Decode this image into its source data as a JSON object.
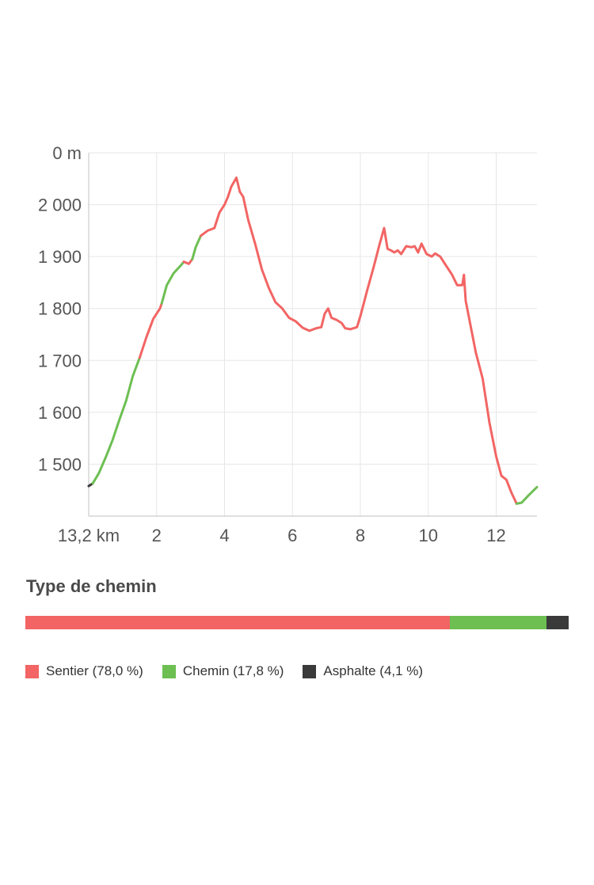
{
  "chart_data": {
    "type": "line",
    "xlabel": "",
    "ylabel": "",
    "x_unit_label": "13,2 km",
    "y_unit_label": "0 m",
    "xlim": [
      0,
      13.2
    ],
    "ylim": [
      1400,
      2100
    ],
    "x_ticks": [
      2,
      4,
      6,
      8,
      10,
      12
    ],
    "y_ticks": [
      {
        "value": 2000,
        "label": "2 000"
      },
      {
        "value": 1900,
        "label": "1 900"
      },
      {
        "value": 1800,
        "label": "1 800"
      },
      {
        "value": 1700,
        "label": "1 700"
      },
      {
        "value": 1600,
        "label": "1 600"
      },
      {
        "value": 1500,
        "label": "1 500"
      }
    ],
    "grid": true,
    "colors": {
      "sentier": "#f26564",
      "chemin": "#6dbf52",
      "asphalte": "#3a3a3a",
      "grid": "#e6e6e6",
      "axis": "#cccccc"
    },
    "series": [
      {
        "surface": "asphalte",
        "points": [
          [
            0.0,
            1458
          ],
          [
            0.12,
            1463
          ]
        ]
      },
      {
        "surface": "chemin",
        "points": [
          [
            0.12,
            1463
          ],
          [
            0.3,
            1483
          ],
          [
            0.5,
            1513
          ],
          [
            0.7,
            1546
          ],
          [
            0.9,
            1585
          ],
          [
            1.1,
            1622
          ],
          [
            1.3,
            1670
          ],
          [
            1.5,
            1705
          ]
        ]
      },
      {
        "surface": "sentier",
        "points": [
          [
            1.5,
            1705
          ],
          [
            1.7,
            1745
          ],
          [
            1.9,
            1780
          ],
          [
            2.1,
            1800
          ],
          [
            2.15,
            1810
          ]
        ]
      },
      {
        "surface": "chemin",
        "points": [
          [
            2.15,
            1810
          ],
          [
            2.3,
            1845
          ],
          [
            2.5,
            1868
          ],
          [
            2.7,
            1882
          ],
          [
            2.8,
            1890
          ]
        ]
      },
      {
        "surface": "sentier",
        "points": [
          [
            2.8,
            1890
          ],
          [
            2.95,
            1886
          ],
          [
            3.05,
            1895
          ]
        ]
      },
      {
        "surface": "chemin",
        "points": [
          [
            3.05,
            1895
          ],
          [
            3.15,
            1918
          ],
          [
            3.3,
            1940
          ]
        ]
      },
      {
        "surface": "sentier",
        "points": [
          [
            3.3,
            1940
          ],
          [
            3.5,
            1950
          ],
          [
            3.7,
            1955
          ],
          [
            3.85,
            1985
          ],
          [
            4.0,
            2000
          ],
          [
            4.1,
            2015
          ],
          [
            4.2,
            2035
          ],
          [
            4.35,
            2052
          ],
          [
            4.45,
            2025
          ],
          [
            4.55,
            2015
          ],
          [
            4.7,
            1970
          ],
          [
            4.9,
            1925
          ],
          [
            5.1,
            1875
          ],
          [
            5.3,
            1840
          ],
          [
            5.5,
            1812
          ],
          [
            5.7,
            1800
          ],
          [
            5.9,
            1782
          ],
          [
            6.1,
            1775
          ],
          [
            6.3,
            1763
          ],
          [
            6.5,
            1757
          ],
          [
            6.7,
            1762
          ],
          [
            6.85,
            1764
          ],
          [
            6.95,
            1790
          ],
          [
            7.05,
            1800
          ],
          [
            7.15,
            1782
          ],
          [
            7.3,
            1778
          ],
          [
            7.45,
            1772
          ],
          [
            7.55,
            1762
          ],
          [
            7.7,
            1760
          ],
          [
            7.9,
            1764
          ],
          [
            8.0,
            1785
          ],
          [
            8.2,
            1835
          ],
          [
            8.4,
            1882
          ],
          [
            8.55,
            1920
          ],
          [
            8.7,
            1955
          ],
          [
            8.8,
            1915
          ],
          [
            8.9,
            1912
          ],
          [
            9.0,
            1908
          ],
          [
            9.1,
            1912
          ],
          [
            9.2,
            1905
          ],
          [
            9.35,
            1920
          ],
          [
            9.5,
            1918
          ],
          [
            9.6,
            1920
          ],
          [
            9.7,
            1908
          ],
          [
            9.8,
            1925
          ],
          [
            9.95,
            1905
          ],
          [
            10.1,
            1900
          ],
          [
            10.2,
            1906
          ],
          [
            10.35,
            1900
          ],
          [
            10.5,
            1885
          ],
          [
            10.7,
            1865
          ],
          [
            10.85,
            1845
          ],
          [
            11.0,
            1845
          ],
          [
            11.05,
            1865
          ],
          [
            11.1,
            1815
          ],
          [
            11.25,
            1765
          ],
          [
            11.4,
            1715
          ],
          [
            11.6,
            1665
          ],
          [
            11.8,
            1580
          ],
          [
            12.0,
            1515
          ],
          [
            12.15,
            1478
          ],
          [
            12.3,
            1470
          ],
          [
            12.45,
            1445
          ],
          [
            12.6,
            1424
          ]
        ]
      },
      {
        "surface": "chemin",
        "points": [
          [
            12.6,
            1424
          ],
          [
            12.75,
            1426
          ],
          [
            12.95,
            1440
          ],
          [
            13.2,
            1456
          ]
        ]
      }
    ]
  },
  "path_type": {
    "title": "Type de chemin",
    "segments": [
      {
        "name": "Sentier",
        "percent": 78.0,
        "label": "Sentier (78,0 %)",
        "color": "#f26564"
      },
      {
        "name": "Chemin",
        "percent": 17.8,
        "label": "Chemin (17,8 %)",
        "color": "#6dbf52"
      },
      {
        "name": "Asphalte",
        "percent": 4.1,
        "label": "Asphalte (4,1 %)",
        "color": "#3a3a3a"
      }
    ]
  }
}
